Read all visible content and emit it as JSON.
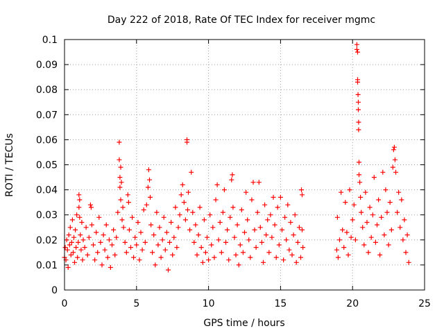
{
  "chart_data": {
    "type": "scatter",
    "title": "Day 222 of 2018, Rate Of TEC Index for receiver mgmc",
    "xlabel": "GPS time / hours",
    "ylabel": "ROTI / TECUs",
    "xlim": [
      0,
      25
    ],
    "ylim": [
      0,
      0.1
    ],
    "xticks": [
      "0",
      "5",
      "10",
      "15",
      "20",
      "25"
    ],
    "yticks": [
      "0",
      "0.01",
      "0.02",
      "0.03",
      "0.04",
      "0.05",
      "0.06",
      "0.07",
      "0.08",
      "0.09",
      "0.1"
    ],
    "grid": true,
    "marker": "+",
    "series": [
      {
        "name": "ROTI",
        "color": "#ff0000",
        "data_gap_hours": [
          16.6,
          18.8
        ],
        "points": [
          [
            0.0,
            0.013
          ],
          [
            0.05,
            0.017
          ],
          [
            0.1,
            0.012
          ],
          [
            0.15,
            0.02
          ],
          [
            0.2,
            0.016
          ],
          [
            0.25,
            0.009
          ],
          [
            0.3,
            0.022
          ],
          [
            0.35,
            0.018
          ],
          [
            0.4,
            0.025
          ],
          [
            0.45,
            0.014
          ],
          [
            0.5,
            0.019
          ],
          [
            0.55,
            0.028
          ],
          [
            0.6,
            0.015
          ],
          [
            0.65,
            0.021
          ],
          [
            0.7,
            0.011
          ],
          [
            0.75,
            0.024
          ],
          [
            0.8,
            0.017
          ],
          [
            0.85,
            0.03
          ],
          [
            0.9,
            0.013
          ],
          [
            0.95,
            0.019
          ],
          [
            1.0,
            0.038
          ],
          [
            1.0,
            0.033
          ],
          [
            1.05,
            0.036
          ],
          [
            1.05,
            0.029
          ],
          [
            1.1,
            0.022
          ],
          [
            1.15,
            0.016
          ],
          [
            1.2,
            0.027
          ],
          [
            1.25,
            0.012
          ],
          [
            1.3,
            0.02
          ],
          [
            1.4,
            0.017
          ],
          [
            1.5,
            0.025
          ],
          [
            1.6,
            0.014
          ],
          [
            1.7,
            0.021
          ],
          [
            1.8,
            0.034
          ],
          [
            1.85,
            0.033
          ],
          [
            1.9,
            0.026
          ],
          [
            2.0,
            0.018
          ],
          [
            2.1,
            0.012
          ],
          [
            2.2,
            0.023
          ],
          [
            2.3,
            0.015
          ],
          [
            2.4,
            0.029
          ],
          [
            2.5,
            0.019
          ],
          [
            2.6,
            0.01
          ],
          [
            2.7,
            0.022
          ],
          [
            2.8,
            0.016
          ],
          [
            2.9,
            0.026
          ],
          [
            3.0,
            0.013
          ],
          [
            3.1,
            0.02
          ],
          [
            3.2,
            0.009
          ],
          [
            3.3,
            0.018
          ],
          [
            3.4,
            0.024
          ],
          [
            3.5,
            0.014
          ],
          [
            3.6,
            0.021
          ],
          [
            3.7,
            0.031
          ],
          [
            3.8,
            0.052
          ],
          [
            3.8,
            0.059
          ],
          [
            3.85,
            0.045
          ],
          [
            3.85,
            0.041
          ],
          [
            3.9,
            0.036
          ],
          [
            3.9,
            0.049
          ],
          [
            3.95,
            0.043
          ],
          [
            4.0,
            0.028
          ],
          [
            4.05,
            0.033
          ],
          [
            4.1,
            0.025
          ],
          [
            4.2,
            0.019
          ],
          [
            4.3,
            0.015
          ],
          [
            4.4,
            0.038
          ],
          [
            4.45,
            0.035
          ],
          [
            4.5,
            0.024
          ],
          [
            4.6,
            0.017
          ],
          [
            4.7,
            0.029
          ],
          [
            4.8,
            0.013
          ],
          [
            4.9,
            0.021
          ],
          [
            5.0,
            0.018
          ],
          [
            5.1,
            0.027
          ],
          [
            5.2,
            0.012
          ],
          [
            5.3,
            0.023
          ],
          [
            5.4,
            0.016
          ],
          [
            5.5,
            0.032
          ],
          [
            5.6,
            0.019
          ],
          [
            5.7,
            0.034
          ],
          [
            5.8,
            0.041
          ],
          [
            5.85,
            0.048
          ],
          [
            5.9,
            0.044
          ],
          [
            5.95,
            0.037
          ],
          [
            6.0,
            0.026
          ],
          [
            6.1,
            0.015
          ],
          [
            6.2,
            0.022
          ],
          [
            6.3,
            0.01
          ],
          [
            6.4,
            0.031
          ],
          [
            6.5,
            0.018
          ],
          [
            6.6,
            0.025
          ],
          [
            6.7,
            0.013
          ],
          [
            6.8,
            0.02
          ],
          [
            6.9,
            0.029
          ],
          [
            7.0,
            0.016
          ],
          [
            7.1,
            0.023
          ],
          [
            7.2,
            0.008
          ],
          [
            7.3,
            0.019
          ],
          [
            7.4,
            0.027
          ],
          [
            7.5,
            0.014
          ],
          [
            7.6,
            0.021
          ],
          [
            7.7,
            0.033
          ],
          [
            7.8,
            0.017
          ],
          [
            7.9,
            0.025
          ],
          [
            8.0,
            0.03
          ],
          [
            8.1,
            0.038
          ],
          [
            8.2,
            0.042
          ],
          [
            8.3,
            0.035
          ],
          [
            8.4,
            0.028
          ],
          [
            8.5,
            0.06
          ],
          [
            8.5,
            0.059
          ],
          [
            8.55,
            0.032
          ],
          [
            8.6,
            0.039
          ],
          [
            8.7,
            0.024
          ],
          [
            8.8,
            0.047
          ],
          [
            8.9,
            0.031
          ],
          [
            9.0,
            0.019
          ],
          [
            9.1,
            0.026
          ],
          [
            9.2,
            0.014
          ],
          [
            9.3,
            0.022
          ],
          [
            9.4,
            0.033
          ],
          [
            9.5,
            0.017
          ],
          [
            9.6,
            0.011
          ],
          [
            9.7,
            0.028
          ],
          [
            9.8,
            0.015
          ],
          [
            9.9,
            0.021
          ],
          [
            10.0,
            0.012
          ],
          [
            10.1,
            0.03
          ],
          [
            10.2,
            0.018
          ],
          [
            10.3,
            0.025
          ],
          [
            10.4,
            0.013
          ],
          [
            10.5,
            0.036
          ],
          [
            10.6,
            0.042
          ],
          [
            10.7,
            0.02
          ],
          [
            10.8,
            0.027
          ],
          [
            10.9,
            0.015
          ],
          [
            11.0,
            0.031
          ],
          [
            11.1,
            0.04
          ],
          [
            11.2,
            0.019
          ],
          [
            11.3,
            0.024
          ],
          [
            11.4,
            0.012
          ],
          [
            11.5,
            0.029
          ],
          [
            11.6,
            0.044
          ],
          [
            11.65,
            0.046
          ],
          [
            11.7,
            0.033
          ],
          [
            11.8,
            0.021
          ],
          [
            11.9,
            0.014
          ],
          [
            12.0,
            0.026
          ],
          [
            12.1,
            0.01
          ],
          [
            12.2,
            0.018
          ],
          [
            12.3,
            0.032
          ],
          [
            12.4,
            0.015
          ],
          [
            12.5,
            0.023
          ],
          [
            12.6,
            0.039
          ],
          [
            12.7,
            0.028
          ],
          [
            12.8,
            0.02
          ],
          [
            12.9,
            0.013
          ],
          [
            13.0,
            0.036
          ],
          [
            13.1,
            0.043
          ],
          [
            13.2,
            0.024
          ],
          [
            13.3,
            0.017
          ],
          [
            13.4,
            0.031
          ],
          [
            13.5,
            0.043
          ],
          [
            13.6,
            0.025
          ],
          [
            13.7,
            0.019
          ],
          [
            13.8,
            0.011
          ],
          [
            13.9,
            0.034
          ],
          [
            14.0,
            0.022
          ],
          [
            14.1,
            0.028
          ],
          [
            14.2,
            0.015
          ],
          [
            14.3,
            0.03
          ],
          [
            14.4,
            0.021
          ],
          [
            14.5,
            0.037
          ],
          [
            14.6,
            0.026
          ],
          [
            14.7,
            0.013
          ],
          [
            14.8,
            0.033
          ],
          [
            14.9,
            0.018
          ],
          [
            15.0,
            0.037
          ],
          [
            15.1,
            0.024
          ],
          [
            15.2,
            0.012
          ],
          [
            15.3,
            0.029
          ],
          [
            15.4,
            0.02
          ],
          [
            15.5,
            0.034
          ],
          [
            15.6,
            0.016
          ],
          [
            15.7,
            0.027
          ],
          [
            15.8,
            0.014
          ],
          [
            15.9,
            0.022
          ],
          [
            16.0,
            0.03
          ],
          [
            16.1,
            0.011
          ],
          [
            16.2,
            0.019
          ],
          [
            16.3,
            0.025
          ],
          [
            16.4,
            0.013
          ],
          [
            16.45,
            0.04
          ],
          [
            16.5,
            0.038
          ],
          [
            16.5,
            0.024
          ],
          [
            16.55,
            0.017
          ],
          [
            18.9,
            0.016
          ],
          [
            18.95,
            0.029
          ],
          [
            19.0,
            0.013
          ],
          [
            19.1,
            0.02
          ],
          [
            19.2,
            0.039
          ],
          [
            19.3,
            0.024
          ],
          [
            19.4,
            0.017
          ],
          [
            19.5,
            0.035
          ],
          [
            19.6,
            0.023
          ],
          [
            19.7,
            0.014
          ],
          [
            19.8,
            0.04
          ],
          [
            19.9,
            0.021
          ],
          [
            20.0,
            0.028
          ],
          [
            20.1,
            0.034
          ],
          [
            20.2,
            0.02
          ],
          [
            20.3,
            0.098
          ],
          [
            20.3,
            0.096
          ],
          [
            20.35,
            0.095
          ],
          [
            20.35,
            0.084
          ],
          [
            20.35,
            0.083
          ],
          [
            20.38,
            0.078
          ],
          [
            20.4,
            0.075
          ],
          [
            20.4,
            0.072
          ],
          [
            20.42,
            0.067
          ],
          [
            20.42,
            0.064
          ],
          [
            20.45,
            0.051
          ],
          [
            20.45,
            0.046
          ],
          [
            20.5,
            0.043
          ],
          [
            20.55,
            0.037
          ],
          [
            20.6,
            0.031
          ],
          [
            20.7,
            0.025
          ],
          [
            20.8,
            0.018
          ],
          [
            20.9,
            0.039
          ],
          [
            21.0,
            0.027
          ],
          [
            21.1,
            0.015
          ],
          [
            21.2,
            0.033
          ],
          [
            21.3,
            0.021
          ],
          [
            21.4,
            0.03
          ],
          [
            21.5,
            0.045
          ],
          [
            21.6,
            0.019
          ],
          [
            21.7,
            0.026
          ],
          [
            21.8,
            0.036
          ],
          [
            21.9,
            0.014
          ],
          [
            22.0,
            0.029
          ],
          [
            22.1,
            0.047
          ],
          [
            22.2,
            0.022
          ],
          [
            22.3,
            0.04
          ],
          [
            22.4,
            0.031
          ],
          [
            22.5,
            0.018
          ],
          [
            22.6,
            0.035
          ],
          [
            22.7,
            0.024
          ],
          [
            22.8,
            0.049
          ],
          [
            22.85,
            0.056
          ],
          [
            22.9,
            0.057
          ],
          [
            22.95,
            0.052
          ],
          [
            23.0,
            0.047
          ],
          [
            23.1,
            0.031
          ],
          [
            23.2,
            0.039
          ],
          [
            23.3,
            0.025
          ],
          [
            23.4,
            0.036
          ],
          [
            23.5,
            0.02
          ],
          [
            23.6,
            0.028
          ],
          [
            23.7,
            0.015
          ],
          [
            23.8,
            0.022
          ],
          [
            23.9,
            0.011
          ]
        ]
      }
    ]
  }
}
